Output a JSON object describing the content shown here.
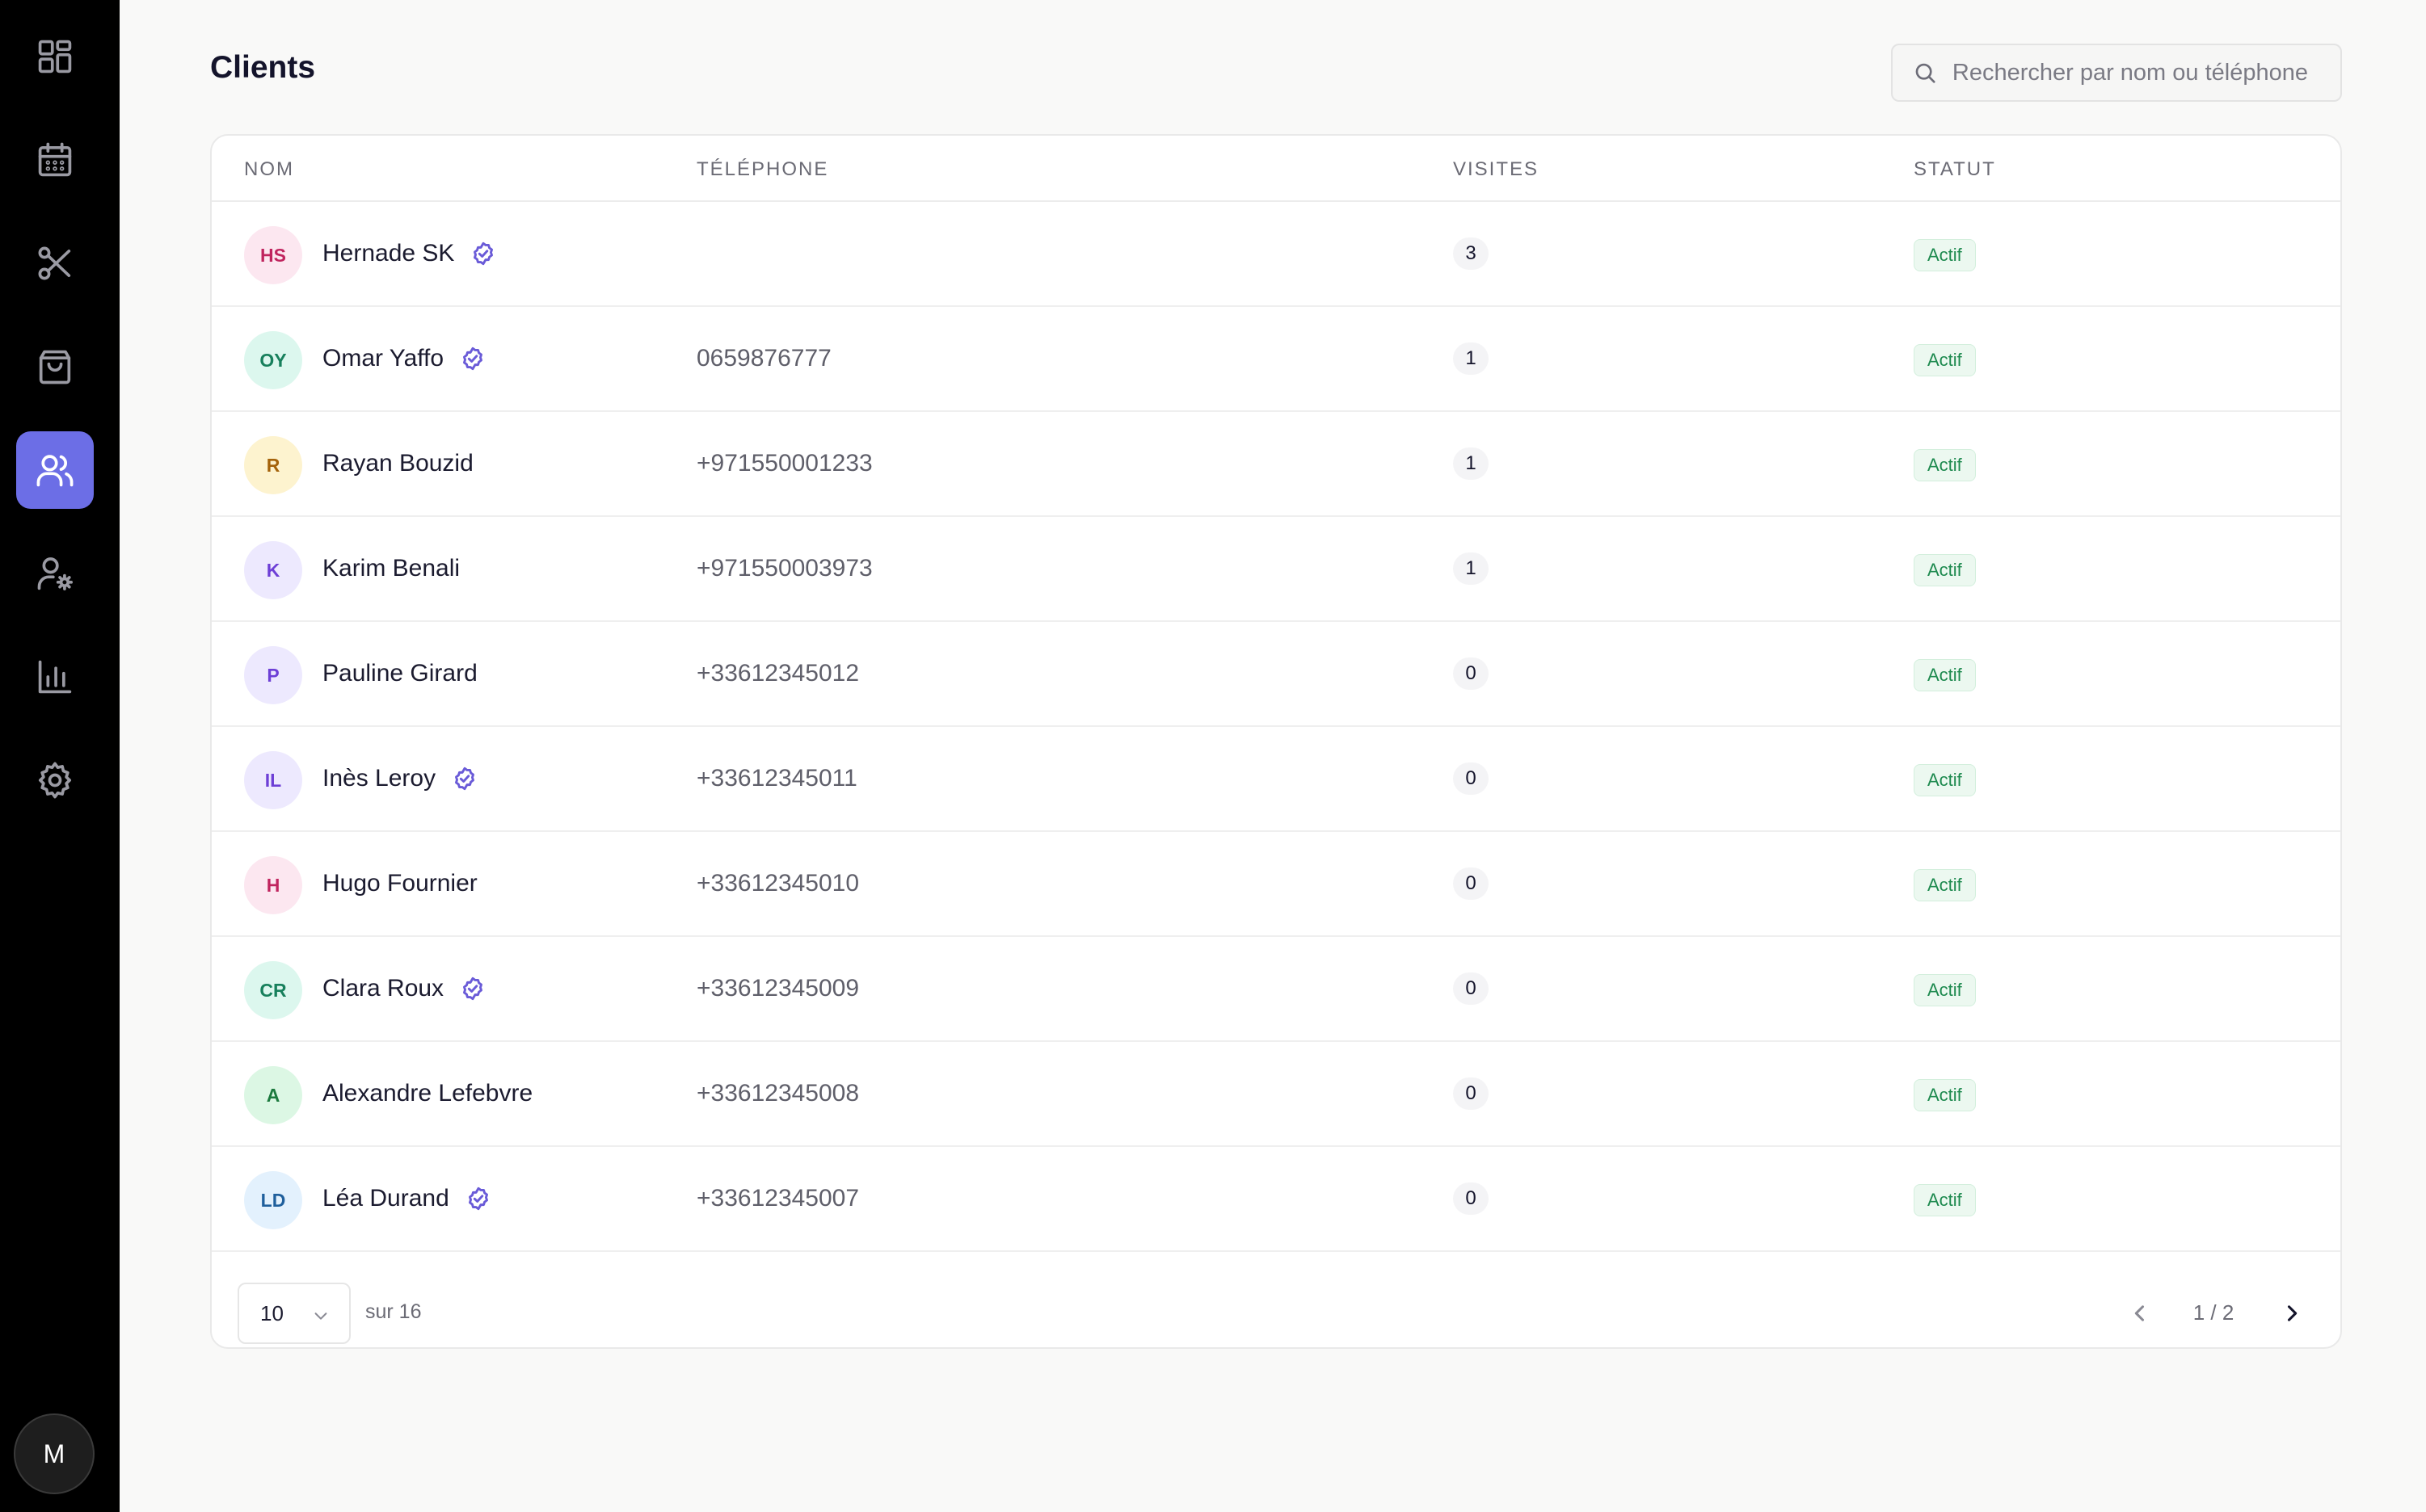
{
  "sidebar": {
    "items": [
      {
        "name": "dashboard",
        "icon": "dashboard-grid-icon",
        "active": false
      },
      {
        "name": "calendar",
        "icon": "calendar-icon",
        "active": false
      },
      {
        "name": "services",
        "icon": "scissors-icon",
        "active": false
      },
      {
        "name": "shop",
        "icon": "shopping-bag-icon",
        "active": false
      },
      {
        "name": "clients",
        "icon": "users-icon",
        "active": true
      },
      {
        "name": "staff",
        "icon": "user-settings-icon",
        "active": false
      },
      {
        "name": "statistics",
        "icon": "bar-chart-icon",
        "active": false
      },
      {
        "name": "settings",
        "icon": "gear-icon",
        "active": false
      }
    ],
    "user_initial": "M",
    "active_color": "#6c6ee6"
  },
  "header": {
    "title": "Clients",
    "search_placeholder": "Rechercher par nom ou téléphone"
  },
  "table": {
    "columns": [
      "NOM",
      "TÉLÉPHONE",
      "VISITES",
      "STATUT"
    ],
    "rows": [
      {
        "initials": "HS",
        "name": "Hernade SK",
        "verified": true,
        "phone": "",
        "visits": "3",
        "status": "Actif",
        "avatar_bg": "#fce7f0",
        "avatar_fg": "#c0245e"
      },
      {
        "initials": "OY",
        "name": "Omar Yaffo",
        "verified": true,
        "phone": "0659876777",
        "visits": "1",
        "status": "Actif",
        "avatar_bg": "#dcf7ee",
        "avatar_fg": "#17805c"
      },
      {
        "initials": "R",
        "name": "Rayan Bouzid",
        "verified": false,
        "phone": "+971550001233",
        "visits": "1",
        "status": "Actif",
        "avatar_bg": "#fdf3cf",
        "avatar_fg": "#a4620a"
      },
      {
        "initials": "K",
        "name": "Karim Benali",
        "verified": false,
        "phone": "+971550003973",
        "visits": "1",
        "status": "Actif",
        "avatar_bg": "#ede9fe",
        "avatar_fg": "#6d3fd6"
      },
      {
        "initials": "P",
        "name": "Pauline Girard",
        "verified": false,
        "phone": "+33612345012",
        "visits": "0",
        "status": "Actif",
        "avatar_bg": "#ede9fe",
        "avatar_fg": "#6d3fd6"
      },
      {
        "initials": "IL",
        "name": "Inès Leroy",
        "verified": true,
        "phone": "+33612345011",
        "visits": "0",
        "status": "Actif",
        "avatar_bg": "#ede9fe",
        "avatar_fg": "#6d3fd6"
      },
      {
        "initials": "H",
        "name": "Hugo Fournier",
        "verified": false,
        "phone": "+33612345010",
        "visits": "0",
        "status": "Actif",
        "avatar_bg": "#fce7f0",
        "avatar_fg": "#c0245e"
      },
      {
        "initials": "CR",
        "name": "Clara Roux",
        "verified": true,
        "phone": "+33612345009",
        "visits": "0",
        "status": "Actif",
        "avatar_bg": "#dcf7ee",
        "avatar_fg": "#17805c"
      },
      {
        "initials": "A",
        "name": "Alexandre Lefebvre",
        "verified": false,
        "phone": "+33612345008",
        "visits": "0",
        "status": "Actif",
        "avatar_bg": "#dcf7e4",
        "avatar_fg": "#1c7a3e"
      },
      {
        "initials": "LD",
        "name": "Léa Durand",
        "verified": true,
        "phone": "+33612345007",
        "visits": "0",
        "status": "Actif",
        "avatar_bg": "#e3f1fd",
        "avatar_fg": "#1f5f9c"
      }
    ],
    "status_color": "#1e8a4f"
  },
  "footer": {
    "page_size": "10",
    "total_label": "sur 16",
    "page_indicator": "1 / 2"
  }
}
